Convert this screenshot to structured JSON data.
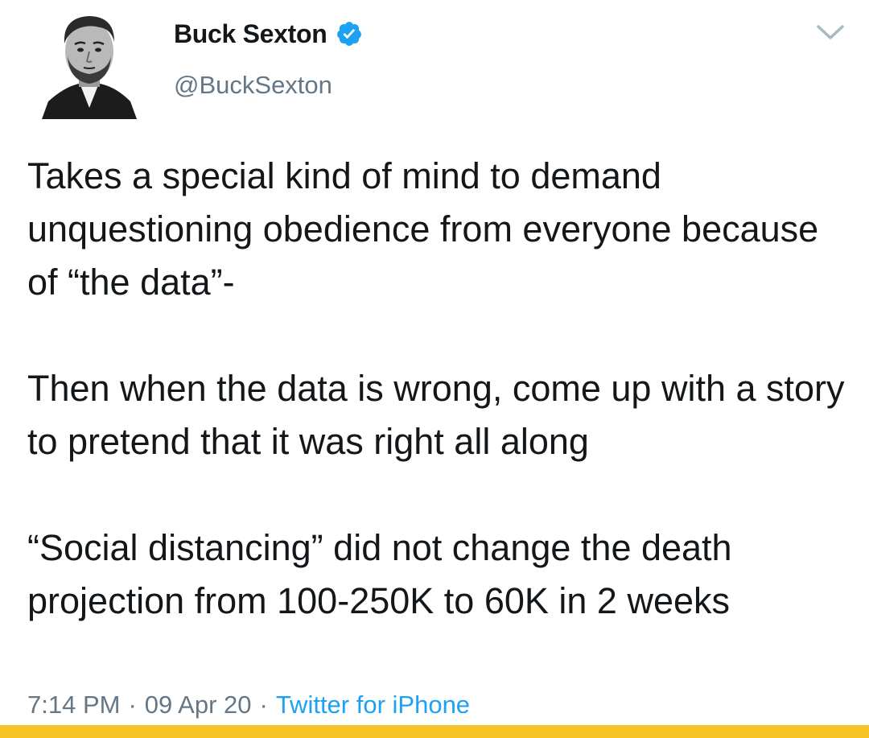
{
  "author": {
    "display_name": "Buck Sexton",
    "handle": "@BuckSexton",
    "verified_icon": "verified-badge-icon"
  },
  "tweet": {
    "paragraphs": [
      "Takes a special kind of mind to demand unquestioning obedience from everyone because of “the data”-",
      "Then when the data is wrong, come up with a story to pretend that it was right all along",
      "“Social distancing” did not change the death projection from 100-250K to 60K in 2 weeks"
    ]
  },
  "meta": {
    "time": "7:14 PM",
    "date": "09 Apr 20",
    "separator": "·",
    "source": "Twitter for iPhone"
  },
  "colors": {
    "verified": "#1da1f2",
    "secondary_text": "#657786",
    "link": "#1da1f2",
    "bottom_bar": "#f7c325"
  }
}
